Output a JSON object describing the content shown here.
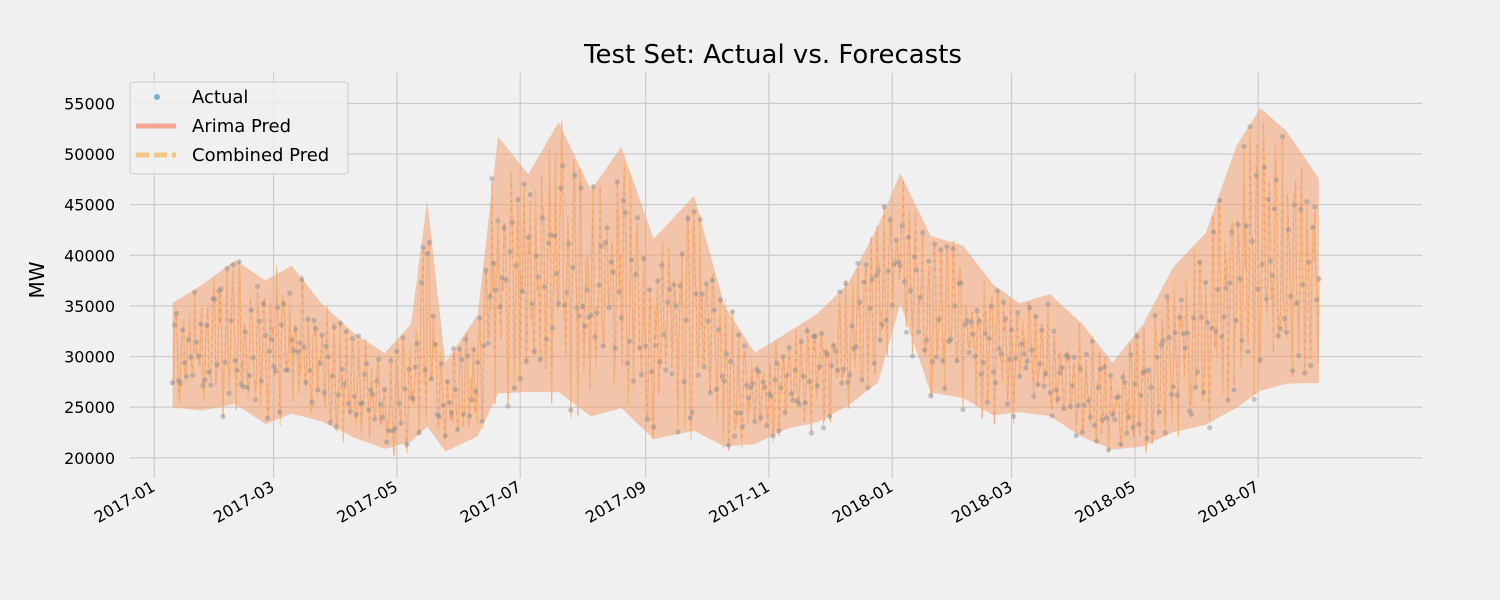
{
  "chart_data": {
    "type": "line",
    "title": "Test Set: Actual vs. Forecasts",
    "xlabel": "",
    "ylabel": "MW",
    "x_range": [
      "2016-12-20",
      "2018-09-20"
    ],
    "x_ticks": [
      "2017-01",
      "2017-03",
      "2017-05",
      "2017-07",
      "2017-09",
      "2017-11",
      "2018-01",
      "2018-03",
      "2018-05",
      "2018-07"
    ],
    "y_range": [
      18000,
      58000
    ],
    "y_ticks": [
      20000,
      25000,
      30000,
      35000,
      40000,
      45000,
      50000,
      55000
    ],
    "grid": true,
    "legend_position": "top-left",
    "series": [
      {
        "name": "Actual",
        "style": "scatter",
        "color": "#4f8fbf"
      },
      {
        "name": "Arima Pred",
        "style": "line-solid",
        "color": "#f4917a"
      },
      {
        "name": "Combined Pred",
        "style": "line-dashed",
        "color": "#f2c27a"
      }
    ],
    "envelope": [
      {
        "date": "2017-01-10",
        "low": 24000,
        "high": 36000
      },
      {
        "date": "2017-01-25",
        "low": 23500,
        "high": 38000
      },
      {
        "date": "2017-02-10",
        "low": 24000,
        "high": 40500
      },
      {
        "date": "2017-02-25",
        "low": 22000,
        "high": 38500
      },
      {
        "date": "2017-03-10",
        "low": 23000,
        "high": 40000
      },
      {
        "date": "2017-03-25",
        "low": 22500,
        "high": 36000
      },
      {
        "date": "2017-04-10",
        "low": 21000,
        "high": 33000
      },
      {
        "date": "2017-04-25",
        "low": 20000,
        "high": 31000
      },
      {
        "date": "2017-05-08",
        "low": 20500,
        "high": 34000
      },
      {
        "date": "2017-05-16",
        "low": 21000,
        "high": 47000
      },
      {
        "date": "2017-05-25",
        "low": 19800,
        "high": 30000
      },
      {
        "date": "2017-06-10",
        "low": 21000,
        "high": 35000
      },
      {
        "date": "2017-06-20",
        "low": 24000,
        "high": 53500
      },
      {
        "date": "2017-07-05",
        "low": 24500,
        "high": 49500
      },
      {
        "date": "2017-07-20",
        "low": 24000,
        "high": 55000
      },
      {
        "date": "2017-08-05",
        "low": 22000,
        "high": 48000
      },
      {
        "date": "2017-08-20",
        "low": 22500,
        "high": 52500
      },
      {
        "date": "2017-09-05",
        "low": 20000,
        "high": 43000
      },
      {
        "date": "2017-09-25",
        "low": 20500,
        "high": 47500
      },
      {
        "date": "2017-10-10",
        "low": 19800,
        "high": 36000
      },
      {
        "date": "2017-10-25",
        "low": 20500,
        "high": 31000
      },
      {
        "date": "2017-11-10",
        "low": 22000,
        "high": 33000
      },
      {
        "date": "2017-11-25",
        "low": 22500,
        "high": 35000
      },
      {
        "date": "2017-12-10",
        "low": 24000,
        "high": 38000
      },
      {
        "date": "2017-12-25",
        "low": 26000,
        "high": 44000
      },
      {
        "date": "2018-01-05",
        "low": 34000,
        "high": 49000
      },
      {
        "date": "2018-01-20",
        "low": 25000,
        "high": 43000
      },
      {
        "date": "2018-02-05",
        "low": 24500,
        "high": 42000
      },
      {
        "date": "2018-02-20",
        "low": 23000,
        "high": 38000
      },
      {
        "date": "2018-03-05",
        "low": 23500,
        "high": 36000
      },
      {
        "date": "2018-03-20",
        "low": 23000,
        "high": 37000
      },
      {
        "date": "2018-04-05",
        "low": 21000,
        "high": 34000
      },
      {
        "date": "2018-04-20",
        "low": 20000,
        "high": 30000
      },
      {
        "date": "2018-05-05",
        "low": 20000,
        "high": 34000
      },
      {
        "date": "2018-05-20",
        "low": 21000,
        "high": 40000
      },
      {
        "date": "2018-06-05",
        "low": 21500,
        "high": 43500
      },
      {
        "date": "2018-06-20",
        "low": 22500,
        "high": 52500
      },
      {
        "date": "2018-07-02",
        "low": 24000,
        "high": 56500
      },
      {
        "date": "2018-07-15",
        "low": 25000,
        "high": 54000
      },
      {
        "date": "2018-07-31",
        "low": 25500,
        "high": 49000
      }
    ]
  }
}
